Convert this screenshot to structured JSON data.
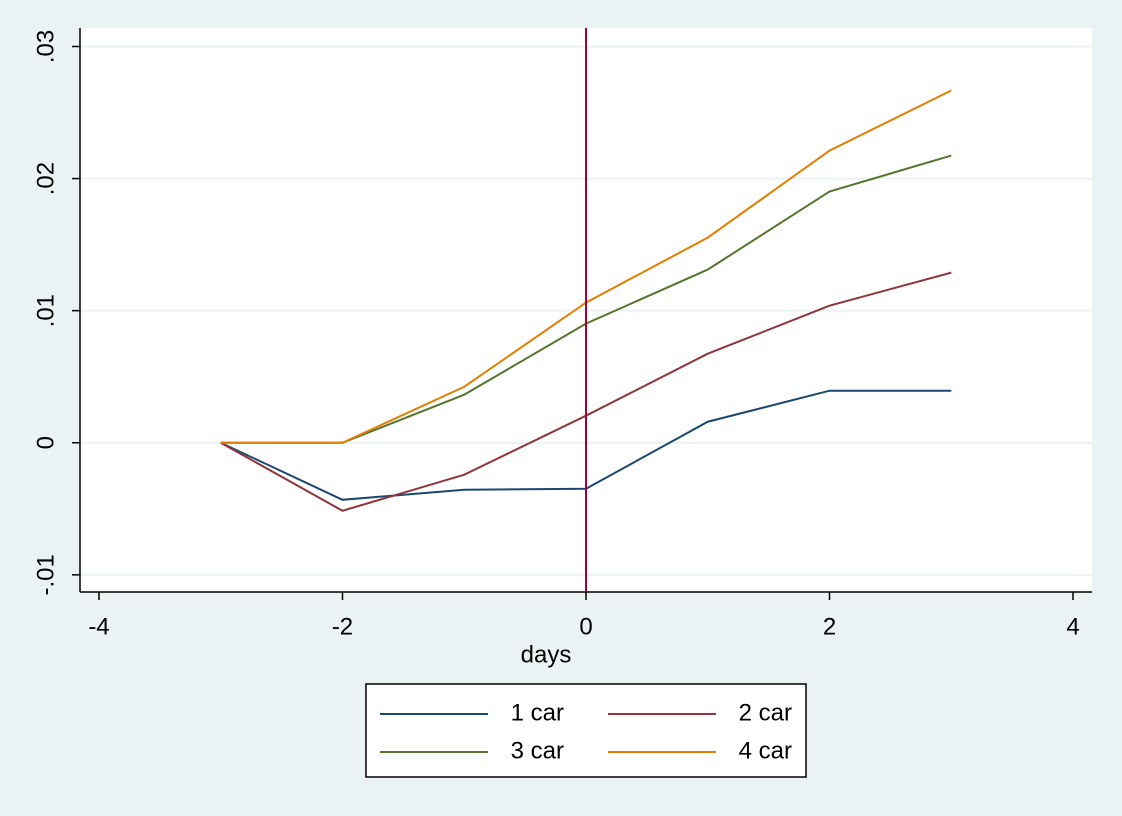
{
  "chart_data": {
    "type": "line",
    "x": [
      -3,
      -2,
      -1,
      0,
      1,
      2,
      3
    ],
    "series": [
      {
        "name": "1 car",
        "color": "#1a476f",
        "values": [
          0,
          -0.00432,
          -0.00356,
          -0.00348,
          0.00159,
          0.00394,
          0.00394
        ]
      },
      {
        "name": "2 car",
        "color": "#90353b",
        "values": [
          0,
          -0.00515,
          -0.00242,
          0.00205,
          0.00674,
          0.01038,
          0.01288
        ]
      },
      {
        "name": "3 car",
        "color": "#55752f",
        "values": [
          0,
          0,
          0.00364,
          0.00902,
          0.01311,
          0.01902,
          0.02174
        ]
      },
      {
        "name": "4 car",
        "color": "#e37e00",
        "values": [
          0,
          0,
          0.00424,
          0.01061,
          0.01553,
          0.02212,
          0.02667
        ]
      }
    ],
    "xlabel": "days",
    "xlim": [
      -4.156,
      4.156
    ],
    "xticks": [
      -4,
      -2,
      0,
      2,
      4
    ],
    "ylim": [
      -0.0113,
      0.0314
    ],
    "yticks": [
      {
        "value": -0.01,
        "label": "-.01"
      },
      0,
      {
        "value": 0.01,
        "label": ".01"
      },
      {
        "value": 0.02,
        "label": ".02"
      },
      {
        "value": 0.03,
        "label": ".03"
      }
    ],
    "grid": true,
    "xline": {
      "value": 0,
      "color": "#a3003a"
    },
    "legend": "bottom"
  }
}
